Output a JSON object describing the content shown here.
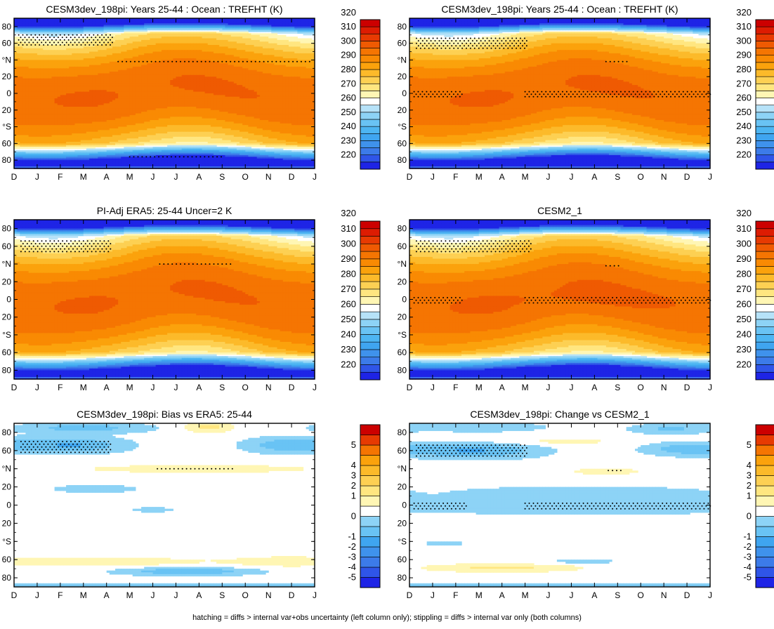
{
  "chart_data": [
    {
      "type": "heatmap",
      "title": "CESM3dev_198pi: Years 25-44 : Ocean : TREFHT (K)",
      "x_ticks": [
        "D",
        "J",
        "F",
        "M",
        "A",
        "M",
        "J",
        "J",
        "A",
        "S",
        "O",
        "N",
        "D",
        "J"
      ],
      "y_ticks": [
        "80",
        "60",
        "°N",
        "20",
        "0",
        "20",
        "°S",
        "60",
        "80"
      ],
      "ylim": [
        -90,
        90
      ],
      "variant": "abs",
      "colorbar": [
        "220",
        "230",
        "240",
        "250",
        "260",
        "270",
        "280",
        "290",
        "300",
        "310",
        "320"
      ]
    },
    {
      "type": "heatmap",
      "title": "CESM3dev_198pi: Years 25-44 : Ocean : TREFHT (K)",
      "x_ticks": [
        "D",
        "J",
        "F",
        "M",
        "A",
        "M",
        "J",
        "J",
        "A",
        "S",
        "O",
        "N",
        "D",
        "J"
      ],
      "y_ticks": [
        "80",
        "60",
        "°N",
        "20",
        "0",
        "20",
        "°S",
        "60",
        "80"
      ],
      "ylim": [
        -90,
        90
      ],
      "variant": "abs",
      "colorbar": [
        "220",
        "230",
        "240",
        "250",
        "260",
        "270",
        "280",
        "290",
        "300",
        "310",
        "320"
      ]
    },
    {
      "type": "heatmap",
      "title": "PI-Adj ERA5: 25-44 Uncer=2 K",
      "x_ticks": [
        "D",
        "J",
        "F",
        "M",
        "A",
        "M",
        "J",
        "J",
        "A",
        "S",
        "O",
        "N",
        "D",
        "J"
      ],
      "y_ticks": [
        "80",
        "60",
        "°N",
        "20",
        "0",
        "20",
        "°S",
        "60",
        "80"
      ],
      "ylim": [
        -90,
        90
      ],
      "variant": "abs",
      "colorbar": [
        "220",
        "230",
        "240",
        "250",
        "260",
        "270",
        "280",
        "290",
        "300",
        "310",
        "320"
      ]
    },
    {
      "type": "heatmap",
      "title": "CESM2_1",
      "x_ticks": [
        "D",
        "J",
        "F",
        "M",
        "A",
        "M",
        "J",
        "J",
        "A",
        "S",
        "O",
        "N",
        "D",
        "J"
      ],
      "y_ticks": [
        "80",
        "60",
        "°N",
        "20",
        "0",
        "20",
        "°S",
        "60",
        "80"
      ],
      "ylim": [
        -90,
        90
      ],
      "variant": "abs",
      "colorbar": [
        "220",
        "230",
        "240",
        "250",
        "260",
        "270",
        "280",
        "290",
        "300",
        "310",
        "320"
      ]
    },
    {
      "type": "heatmap",
      "title": "CESM3dev_198pi: Bias vs ERA5: 25-44",
      "x_ticks": [
        "D",
        "J",
        "F",
        "M",
        "A",
        "M",
        "J",
        "J",
        "A",
        "S",
        "O",
        "N",
        "D",
        "J"
      ],
      "y_ticks": [
        "80",
        "60",
        "°N",
        "20",
        "0",
        "20",
        "°S",
        "60",
        "80"
      ],
      "ylim": [
        -90,
        90
      ],
      "variant": "bias",
      "colorbar": [
        "-5",
        "-4",
        "-3",
        "-2",
        "-1",
        "0",
        "1",
        "2",
        "3",
        "4",
        "5"
      ]
    },
    {
      "type": "heatmap",
      "title": "CESM3dev_198pi: Change vs CESM2_1",
      "x_ticks": [
        "D",
        "J",
        "F",
        "M",
        "A",
        "M",
        "J",
        "J",
        "A",
        "S",
        "O",
        "N",
        "D",
        "J"
      ],
      "y_ticks": [
        "80",
        "60",
        "°N",
        "20",
        "0",
        "20",
        "°S",
        "60",
        "80"
      ],
      "ylim": [
        -90,
        90
      ],
      "variant": "change",
      "colorbar": [
        "-5",
        "-4",
        "-3",
        "-2",
        "-1",
        "0",
        "1",
        "2",
        "3",
        "4",
        "5"
      ]
    }
  ],
  "caption": "hatching = diffs > internal var+obs uncertainty (left column only); stippling = diffs > internal var only (both columns)",
  "colors": {
    "abs_scale": [
      "#1e24e6",
      "#2f55e8",
      "#3c7be9",
      "#3f92ec",
      "#3fa5f0",
      "#4db5f2",
      "#69c3f4",
      "#8dd3f6",
      "#b6e2f8",
      "#ffffff",
      "#fff6b4",
      "#ffe680",
      "#fdd053",
      "#fcba2a",
      "#fba20c",
      "#f98a03",
      "#f57502",
      "#ef5a02",
      "#e73a02",
      "#dd1c02",
      "#cc0000"
    ],
    "diff_scale": [
      "#1e24e6",
      "#2f55e8",
      "#3c7be9",
      "#3f92ec",
      "#3fa5f0",
      "#69c3f4",
      "#8dd3f6",
      "#ffffff",
      "#fff6b4",
      "#ffe680",
      "#fdd053",
      "#fcba2a",
      "#fba20c",
      "#f57502",
      "#e73a02",
      "#cc0000"
    ]
  }
}
